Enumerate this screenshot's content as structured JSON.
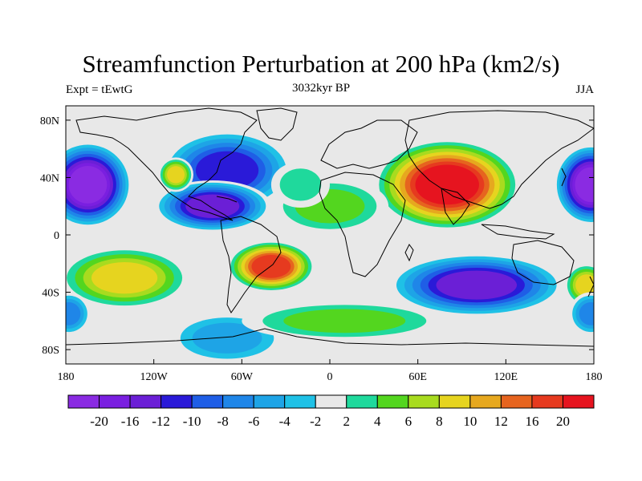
{
  "title": "Streamfunction Perturbation at 200 hPa (km2/s)",
  "left_label": "Expt = tEwtG",
  "center_label": "3032kyr BP",
  "right_label": "JJA",
  "lat_ticks": [
    {
      "value": 80,
      "label": "80N"
    },
    {
      "value": 40,
      "label": "40N"
    },
    {
      "value": 0,
      "label": "0"
    },
    {
      "value": -40,
      "label": "40S"
    },
    {
      "value": -80,
      "label": "80S"
    }
  ],
  "lon_ticks": [
    {
      "value": -180,
      "label": "180"
    },
    {
      "value": -120,
      "label": "120W"
    },
    {
      "value": -60,
      "label": "60W"
    },
    {
      "value": 0,
      "label": "0"
    },
    {
      "value": 60,
      "label": "60E"
    },
    {
      "value": 120,
      "label": "120E"
    },
    {
      "value": 180,
      "label": "180"
    }
  ],
  "colorbar": {
    "levels": [
      "-20",
      "-16",
      "-12",
      "-10",
      "-8",
      "-6",
      "-4",
      "-2",
      "2",
      "4",
      "6",
      "8",
      "10",
      "12",
      "16",
      "20"
    ],
    "colors": [
      "#8a2be2",
      "#7a1fe0",
      "#6b1fd6",
      "#2a1ad8",
      "#1f5ee6",
      "#1f86e8",
      "#1ea4e6",
      "#1fc1e6",
      "#e8e8e8",
      "#1fd99c",
      "#53d61f",
      "#a8db1f",
      "#e6d41f",
      "#e6a81f",
      "#e6641f",
      "#e63a1f",
      "#e6141f"
    ]
  },
  "map": {
    "lon_range": [
      -180,
      180
    ],
    "lat_range": [
      -90,
      90
    ],
    "background_color": "#e8e8e8",
    "blobs": [
      {
        "lon": -165,
        "lat": 35,
        "rx": 30,
        "ry": 30,
        "level": 0
      },
      {
        "lon": 178,
        "lat": 35,
        "rx": 25,
        "ry": 28,
        "level": 0
      },
      {
        "lon": -70,
        "lat": 45,
        "rx": 45,
        "ry": 28,
        "level": 3
      },
      {
        "lon": -80,
        "lat": 20,
        "rx": 40,
        "ry": 18,
        "level": 2
      },
      {
        "lon": -105,
        "lat": 42,
        "rx": 12,
        "ry": 12,
        "level": 12
      },
      {
        "lon": 80,
        "lat": 35,
        "rx": 50,
        "ry": 32,
        "level": 16
      },
      {
        "lon": -140,
        "lat": -30,
        "rx": 45,
        "ry": 22,
        "level": 12
      },
      {
        "lon": -40,
        "lat": -22,
        "rx": 30,
        "ry": 18,
        "level": 15
      },
      {
        "lon": 100,
        "lat": -35,
        "rx": 60,
        "ry": 22,
        "level": 2
      },
      {
        "lon": -70,
        "lat": -72,
        "rx": 40,
        "ry": 18,
        "level": 6
      },
      {
        "lon": 10,
        "lat": -60,
        "rx": 70,
        "ry": 14,
        "level": 10
      },
      {
        "lon": 175,
        "lat": -35,
        "rx": 15,
        "ry": 15,
        "level": 12
      },
      {
        "lon": -178,
        "lat": -55,
        "rx": 15,
        "ry": 15,
        "level": 5
      },
      {
        "lon": 178,
        "lat": -55,
        "rx": 15,
        "ry": 15,
        "level": 5
      },
      {
        "lon": 0,
        "lat": 20,
        "rx": 40,
        "ry": 20,
        "level": 10
      },
      {
        "lon": -20,
        "lat": 35,
        "rx": 20,
        "ry": 16,
        "level": 9
      }
    ]
  }
}
